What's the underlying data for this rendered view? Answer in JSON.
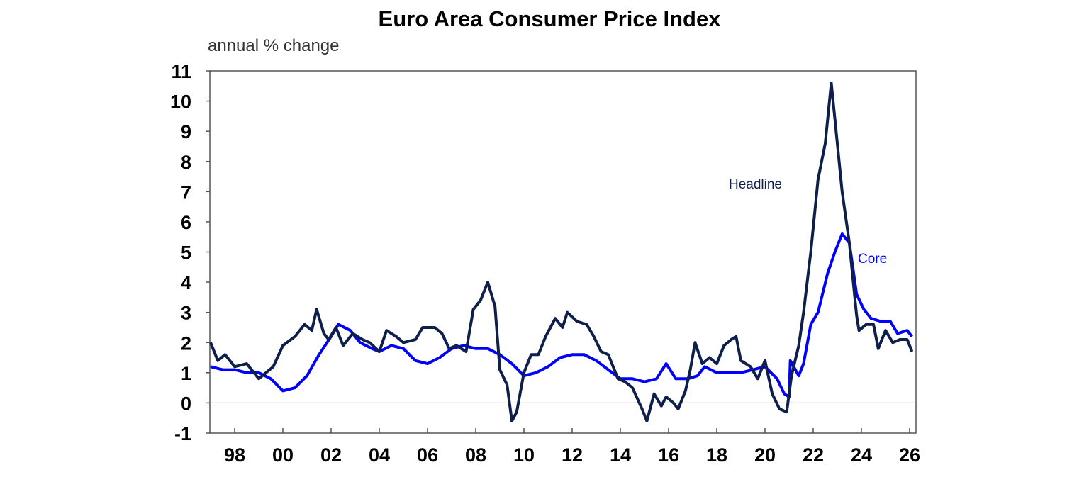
{
  "chart_data": {
    "type": "line",
    "title": "Euro Area Consumer Price Index",
    "ylabel": "annual % change",
    "xlabel": "",
    "ylim": [
      -1,
      11
    ],
    "xlim": [
      1997,
      2026.3
    ],
    "grid": false,
    "yticks": [
      "-1",
      "0",
      "1",
      "2",
      "3",
      "4",
      "5",
      "6",
      "7",
      "8",
      "9",
      "10",
      "11"
    ],
    "xticks": [
      {
        "year": 1998,
        "label": "98"
      },
      {
        "year": 2000,
        "label": "00"
      },
      {
        "year": 2002,
        "label": "02"
      },
      {
        "year": 2004,
        "label": "04"
      },
      {
        "year": 2006,
        "label": "06"
      },
      {
        "year": 2008,
        "label": "08"
      },
      {
        "year": 2010,
        "label": "10"
      },
      {
        "year": 2012,
        "label": "12"
      },
      {
        "year": 2014,
        "label": "14"
      },
      {
        "year": 2016,
        "label": "16"
      },
      {
        "year": 2018,
        "label": "18"
      },
      {
        "year": 2020,
        "label": "20"
      },
      {
        "year": 2022,
        "label": "22"
      },
      {
        "year": 2024,
        "label": "24"
      },
      {
        "year": 2026,
        "label": "26"
      }
    ],
    "series": [
      {
        "name": "Headline",
        "color": "#0f1f4b",
        "x": [
          1997.0,
          1997.3,
          1997.6,
          1998.0,
          1998.5,
          1999.0,
          1999.3,
          1999.6,
          2000.0,
          2000.5,
          2000.9,
          2001.2,
          2001.4,
          2001.7,
          2001.9,
          2002.2,
          2002.5,
          2002.9,
          2003.3,
          2003.6,
          2004.0,
          2004.3,
          2004.7,
          2005.0,
          2005.5,
          2005.8,
          2006.3,
          2006.6,
          2006.9,
          2007.2,
          2007.6,
          2007.9,
          2008.2,
          2008.5,
          2008.8,
          2009.0,
          2009.3,
          2009.5,
          2009.7,
          2010.0,
          2010.3,
          2010.6,
          2010.9,
          2011.3,
          2011.6,
          2011.8,
          2012.2,
          2012.6,
          2012.9,
          2013.2,
          2013.5,
          2013.9,
          2014.2,
          2014.5,
          2014.9,
          2015.1,
          2015.4,
          2015.7,
          2015.9,
          2016.2,
          2016.4,
          2016.7,
          2016.9,
          2017.1,
          2017.4,
          2017.7,
          2018.0,
          2018.3,
          2018.6,
          2018.8,
          2019.0,
          2019.4,
          2019.7,
          2020.0,
          2020.3,
          2020.6,
          2020.9,
          2021.1,
          2021.4,
          2021.6,
          2021.9,
          2022.2,
          2022.5,
          2022.75,
          2023.0,
          2023.2,
          2023.5,
          2023.8,
          2023.9,
          2024.2,
          2024.5,
          2024.7,
          2025.0,
          2025.3,
          2025.6,
          2025.9,
          2026.1
        ],
        "values": [
          2.0,
          1.4,
          1.6,
          1.2,
          1.3,
          0.8,
          1.0,
          1.2,
          1.9,
          2.2,
          2.6,
          2.4,
          3.1,
          2.3,
          2.1,
          2.5,
          1.9,
          2.3,
          2.1,
          2.0,
          1.7,
          2.4,
          2.2,
          2.0,
          2.1,
          2.5,
          2.5,
          2.3,
          1.8,
          1.9,
          1.7,
          3.1,
          3.4,
          4.0,
          3.2,
          1.1,
          0.6,
          -0.6,
          -0.3,
          1.0,
          1.6,
          1.6,
          2.2,
          2.8,
          2.5,
          3.0,
          2.7,
          2.6,
          2.2,
          1.7,
          1.6,
          0.8,
          0.7,
          0.5,
          -0.2,
          -0.6,
          0.3,
          -0.1,
          0.2,
          0.0,
          -0.2,
          0.4,
          1.1,
          2.0,
          1.3,
          1.5,
          1.3,
          1.9,
          2.1,
          2.2,
          1.4,
          1.2,
          0.8,
          1.4,
          0.3,
          -0.2,
          -0.3,
          0.9,
          1.9,
          3.0,
          5.0,
          7.4,
          8.6,
          10.6,
          8.6,
          7.0,
          5.3,
          2.9,
          2.4,
          2.6,
          2.6,
          1.8,
          2.4,
          2.0,
          2.1,
          2.1,
          1.7
        ]
      },
      {
        "name": "Core",
        "color": "#0000ff",
        "x": [
          1997.0,
          1997.5,
          1998.0,
          1998.5,
          1999.0,
          1999.5,
          2000.0,
          2000.5,
          2001.0,
          2001.5,
          2002.0,
          2002.3,
          2002.8,
          2003.2,
          2003.7,
          2004.0,
          2004.5,
          2005.0,
          2005.5,
          2006.0,
          2006.5,
          2007.0,
          2007.5,
          2008.0,
          2008.5,
          2009.0,
          2009.5,
          2010.0,
          2010.5,
          2011.0,
          2011.5,
          2012.0,
          2012.5,
          2013.0,
          2013.5,
          2014.0,
          2014.5,
          2015.0,
          2015.5,
          2015.9,
          2016.3,
          2016.8,
          2017.2,
          2017.5,
          2018.0,
          2018.5,
          2019.0,
          2019.5,
          2020.0,
          2020.5,
          2020.8,
          2021.0,
          2021.05,
          2021.4,
          2021.6,
          2021.9,
          2022.2,
          2022.6,
          2022.9,
          2023.2,
          2023.5,
          2023.8,
          2024.1,
          2024.4,
          2024.8,
          2025.2,
          2025.5,
          2025.9,
          2026.1
        ],
        "values": [
          1.2,
          1.1,
          1.1,
          1.0,
          1.0,
          0.8,
          0.4,
          0.5,
          0.9,
          1.6,
          2.2,
          2.6,
          2.4,
          2.0,
          1.8,
          1.7,
          1.9,
          1.8,
          1.4,
          1.3,
          1.5,
          1.8,
          1.9,
          1.8,
          1.8,
          1.6,
          1.3,
          0.9,
          1.0,
          1.2,
          1.5,
          1.6,
          1.6,
          1.4,
          1.1,
          0.8,
          0.8,
          0.7,
          0.8,
          1.3,
          0.8,
          0.8,
          0.9,
          1.2,
          1.0,
          1.0,
          1.0,
          1.1,
          1.2,
          0.8,
          0.3,
          0.2,
          1.4,
          0.9,
          1.3,
          2.6,
          3.0,
          4.3,
          5.0,
          5.6,
          5.3,
          3.6,
          3.1,
          2.8,
          2.7,
          2.7,
          2.3,
          2.4,
          2.2
        ]
      }
    ],
    "annotations": [
      "Headline",
      "Core"
    ]
  }
}
